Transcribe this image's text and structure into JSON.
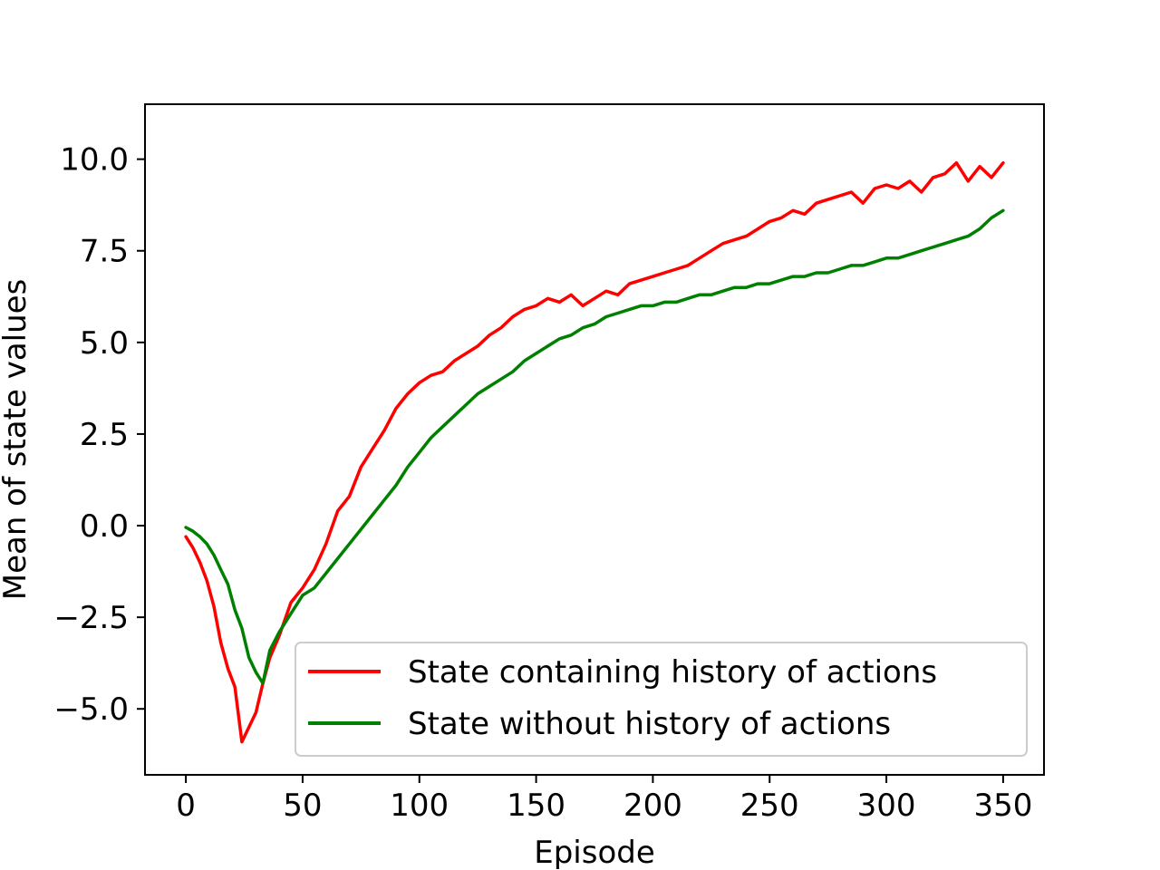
{
  "chart_data": {
    "type": "line",
    "title": "",
    "xlabel": "Episode",
    "ylabel": "Mean of state values",
    "xlim": [
      -17.5,
      367.5
    ],
    "ylim": [
      -6.8,
      11.5
    ],
    "xticks": [
      0,
      50,
      100,
      150,
      200,
      250,
      300,
      350
    ],
    "xtick_labels": [
      "0",
      "50",
      "100",
      "150",
      "200",
      "250",
      "300",
      "350"
    ],
    "yticks": [
      -5.0,
      -2.5,
      0.0,
      2.5,
      5.0,
      7.5,
      10.0
    ],
    "ytick_labels": [
      "−5.0",
      "−2.5",
      "0.0",
      "2.5",
      "5.0",
      "7.5",
      "10.0"
    ],
    "grid": false,
    "legend_position": "lower-right",
    "series": [
      {
        "name": "State containing history of actions",
        "color": "#ff0000",
        "x": [
          0,
          3,
          6,
          9,
          12,
          15,
          18,
          21,
          24,
          27,
          30,
          33,
          36,
          40,
          45,
          50,
          55,
          60,
          65,
          70,
          75,
          80,
          85,
          90,
          95,
          100,
          105,
          110,
          115,
          120,
          125,
          130,
          135,
          140,
          145,
          150,
          155,
          160,
          165,
          170,
          175,
          180,
          185,
          190,
          195,
          200,
          205,
          210,
          215,
          220,
          225,
          230,
          235,
          240,
          245,
          250,
          255,
          260,
          265,
          270,
          275,
          280,
          285,
          290,
          295,
          300,
          305,
          310,
          315,
          320,
          325,
          330,
          335,
          340,
          345,
          350
        ],
        "y": [
          -0.3,
          -0.6,
          -1.0,
          -1.5,
          -2.2,
          -3.2,
          -3.9,
          -4.4,
          -5.9,
          -5.5,
          -5.1,
          -4.3,
          -3.6,
          -3.0,
          -2.1,
          -1.7,
          -1.2,
          -0.5,
          0.4,
          0.8,
          1.6,
          2.1,
          2.6,
          3.2,
          3.6,
          3.9,
          4.1,
          4.2,
          4.5,
          4.7,
          4.9,
          5.2,
          5.4,
          5.7,
          5.9,
          6.0,
          6.2,
          6.1,
          6.3,
          6.0,
          6.2,
          6.4,
          6.3,
          6.6,
          6.7,
          6.8,
          6.9,
          7.0,
          7.1,
          7.3,
          7.5,
          7.7,
          7.8,
          7.9,
          8.1,
          8.3,
          8.4,
          8.6,
          8.5,
          8.8,
          8.9,
          9.0,
          9.1,
          8.8,
          9.2,
          9.3,
          9.2,
          9.4,
          9.1,
          9.5,
          9.6,
          9.9,
          9.4,
          9.8,
          9.5,
          9.9
        ]
      },
      {
        "name": "State without history of actions",
        "color": "#008000",
        "x": [
          0,
          3,
          6,
          9,
          12,
          15,
          18,
          21,
          24,
          27,
          30,
          33,
          36,
          40,
          45,
          50,
          55,
          60,
          65,
          70,
          75,
          80,
          85,
          90,
          95,
          100,
          105,
          110,
          115,
          120,
          125,
          130,
          135,
          140,
          145,
          150,
          155,
          160,
          165,
          170,
          175,
          180,
          185,
          190,
          195,
          200,
          205,
          210,
          215,
          220,
          225,
          230,
          235,
          240,
          245,
          250,
          255,
          260,
          265,
          270,
          275,
          280,
          285,
          290,
          295,
          300,
          305,
          310,
          315,
          320,
          325,
          330,
          335,
          340,
          345,
          350
        ],
        "y": [
          -0.05,
          -0.15,
          -0.3,
          -0.5,
          -0.8,
          -1.2,
          -1.6,
          -2.3,
          -2.8,
          -3.6,
          -4.0,
          -4.3,
          -3.4,
          -2.9,
          -2.4,
          -1.9,
          -1.7,
          -1.3,
          -0.9,
          -0.5,
          -0.1,
          0.3,
          0.7,
          1.1,
          1.6,
          2.0,
          2.4,
          2.7,
          3.0,
          3.3,
          3.6,
          3.8,
          4.0,
          4.2,
          4.5,
          4.7,
          4.9,
          5.1,
          5.2,
          5.4,
          5.5,
          5.7,
          5.8,
          5.9,
          6.0,
          6.0,
          6.1,
          6.1,
          6.2,
          6.3,
          6.3,
          6.4,
          6.5,
          6.5,
          6.6,
          6.6,
          6.7,
          6.8,
          6.8,
          6.9,
          6.9,
          7.0,
          7.1,
          7.1,
          7.2,
          7.3,
          7.3,
          7.4,
          7.5,
          7.6,
          7.7,
          7.8,
          7.9,
          8.1,
          8.4,
          8.6
        ]
      }
    ]
  }
}
